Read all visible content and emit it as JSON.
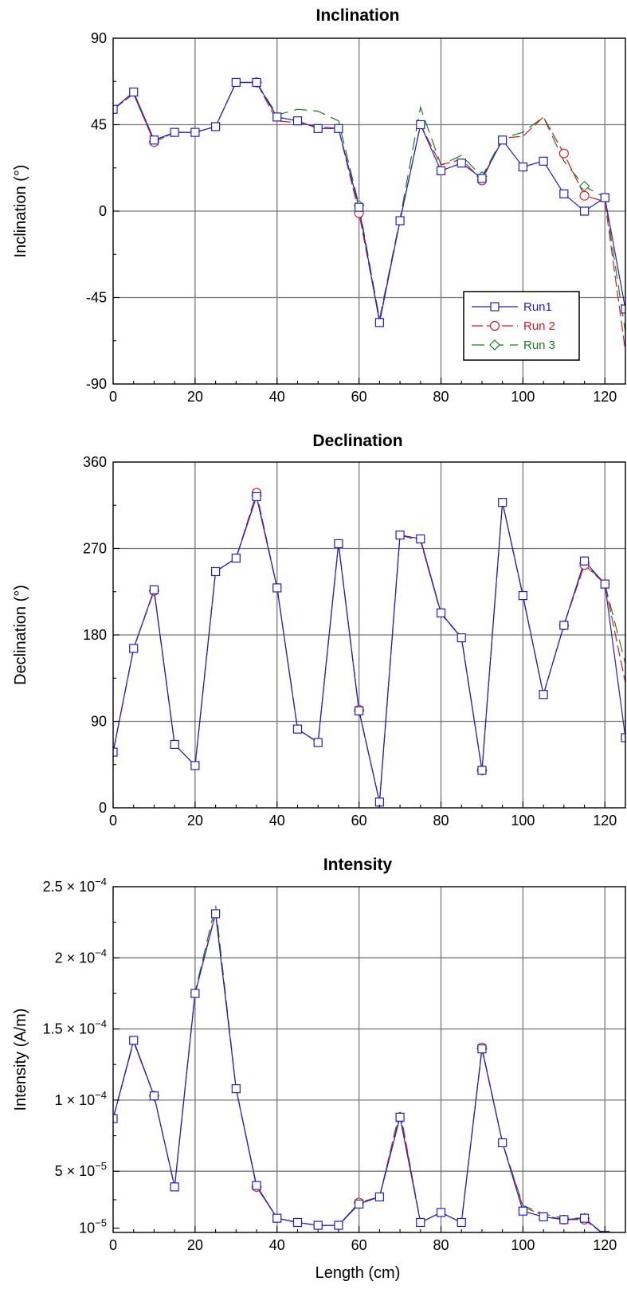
{
  "colors": {
    "run1": "#1f1fcc",
    "run2": "#cc1f1f",
    "run3": "#1f7a1f",
    "grid": "#777777"
  },
  "legend": [
    "Run1",
    "Run 2",
    "Run 3"
  ],
  "chart_data": [
    {
      "type": "line",
      "title": "Inclination",
      "xlabel": "",
      "ylabel": "Inclination (°)",
      "xlim": [
        0,
        125
      ],
      "ylim": [
        -90,
        90
      ],
      "xticks": [
        0,
        20,
        40,
        60,
        80,
        100,
        120
      ],
      "yticks": [
        -90,
        -45,
        0,
        45,
        90
      ],
      "ytick_labels": [
        "-90",
        "-45",
        "0",
        "45",
        "90"
      ],
      "grid": true,
      "legend_position": "bottom-right",
      "x": [
        0,
        5,
        10,
        15,
        20,
        25,
        30,
        35,
        40,
        45,
        50,
        55,
        60,
        65,
        70,
        75,
        80,
        85,
        90,
        95,
        100,
        105,
        110,
        115,
        120,
        125
      ],
      "series": [
        {
          "name": "Run1",
          "marker": "square",
          "style": "solid",
          "values": [
            53,
            62,
            37,
            41,
            41,
            44,
            67,
            67,
            49,
            47,
            43,
            43,
            2,
            -58,
            -5,
            45,
            21,
            25,
            17,
            37,
            23,
            26,
            9,
            0,
            7,
            -51
          ]
        },
        {
          "name": "Run 2",
          "marker": "circle",
          "style": "dashed",
          "values": [
            53,
            61,
            36,
            41,
            41,
            44,
            67,
            67,
            47,
            46,
            44,
            43,
            -1,
            -57,
            -5,
            45,
            24,
            27,
            16,
            38,
            39,
            49,
            30,
            8,
            5,
            -73
          ]
        },
        {
          "name": "Run 3",
          "marker": "diamond",
          "style": "longdash",
          "values": [
            53,
            61,
            36,
            41,
            41,
            44,
            67,
            67,
            50,
            53,
            52,
            47,
            3,
            -56,
            -4,
            54,
            24,
            29,
            18,
            38,
            41,
            49,
            26,
            13,
            7,
            -63
          ]
        }
      ]
    },
    {
      "type": "line",
      "title": "Declination",
      "xlabel": "",
      "ylabel": "Declination (°)",
      "xlim": [
        0,
        125
      ],
      "ylim": [
        0,
        360
      ],
      "xticks": [
        0,
        20,
        40,
        60,
        80,
        100,
        120
      ],
      "yticks": [
        0,
        90,
        180,
        270,
        360
      ],
      "ytick_labels": [
        "0",
        "90",
        "180",
        "270",
        "360"
      ],
      "grid": true,
      "x": [
        0,
        5,
        10,
        15,
        20,
        25,
        30,
        35,
        40,
        45,
        50,
        55,
        60,
        65,
        70,
        75,
        80,
        85,
        90,
        95,
        100,
        105,
        110,
        115,
        120,
        125
      ],
      "series": [
        {
          "name": "Run1",
          "marker": "square",
          "style": "solid",
          "values": [
            58,
            166,
            227,
            66,
            44,
            246,
            260,
            324,
            229,
            82,
            68,
            275,
            101,
            6,
            284,
            280,
            203,
            177,
            39,
            318,
            221,
            118,
            190,
            257,
            233,
            73
          ]
        },
        {
          "name": "Run 2",
          "marker": "circle",
          "style": "dashed",
          "values": [
            58,
            166,
            226,
            66,
            44,
            246,
            260,
            328,
            229,
            82,
            68,
            275,
            102,
            6,
            284,
            278,
            202,
            178,
            39,
            318,
            220,
            118,
            190,
            253,
            233,
            130
          ]
        },
        {
          "name": "Run 3",
          "marker": "diamond",
          "style": "longdash",
          "values": [
            58,
            166,
            226,
            66,
            44,
            246,
            260,
            325,
            229,
            82,
            68,
            275,
            101,
            6,
            284,
            279,
            202,
            177,
            39,
            318,
            220,
            118,
            190,
            255,
            233,
            150
          ]
        }
      ]
    },
    {
      "type": "line",
      "title": "Intensity",
      "xlabel": "Length (cm)",
      "ylabel": "Intensity (A/m)",
      "xlim": [
        0,
        125
      ],
      "ylim": [
        7e-06,
        0.00025
      ],
      "xticks": [
        0,
        20,
        40,
        60,
        80,
        100,
        120
      ],
      "yticks": [
        1e-05,
        5e-05,
        0.0001,
        0.00015,
        0.0002,
        0.00025
      ],
      "ytick_labels": [
        {
          "mantissa": "",
          "exp": "−5"
        },
        {
          "mantissa": "5 × ",
          "exp": "−5"
        },
        {
          "mantissa": "1 × ",
          "exp": "−4"
        },
        {
          "mantissa": "1.5 × ",
          "exp": "−4"
        },
        {
          "mantissa": "2 × ",
          "exp": "−4"
        },
        {
          "mantissa": "2.5 × ",
          "exp": "−4"
        }
      ],
      "ytick_base": "10",
      "grid": true,
      "x": [
        0,
        5,
        10,
        15,
        20,
        25,
        30,
        35,
        40,
        45,
        50,
        55,
        60,
        65,
        70,
        75,
        80,
        85,
        90,
        95,
        100,
        105,
        110,
        115,
        120,
        125
      ],
      "series": [
        {
          "name": "Run1",
          "marker": "square",
          "style": "solid",
          "values": [
            8.7e-05,
            0.000142,
            0.000103,
            3.9e-05,
            0.000175,
            0.000231,
            0.000108,
            4e-05,
            1.7e-05,
            1.4e-05,
            1.2e-05,
            1.2e-05,
            2.7e-05,
            3.2e-05,
            8.8e-05,
            1.4e-05,
            2.1e-05,
            1.4e-05,
            0.000136,
            7e-05,
            2.2e-05,
            1.8e-05,
            1.6e-05,
            1.7e-05,
            5e-06,
            3e-06
          ]
        },
        {
          "name": "Run 2",
          "marker": "circle",
          "style": "dashed",
          "values": [
            8.7e-05,
            0.000141,
            0.000103,
            3.9e-05,
            0.000175,
            0.000232,
            0.000108,
            3.9e-05,
            1.7e-05,
            1.4e-05,
            1.2e-05,
            1.2e-05,
            2.8e-05,
            3.2e-05,
            9.3e-05,
            1.4e-05,
            2.1e-05,
            1.4e-05,
            0.000137,
            7e-05,
            2.5e-05,
            1.9e-05,
            1.6e-05,
            1.6e-05,
            5e-06,
            4e-06
          ]
        },
        {
          "name": "Run 3",
          "marker": "diamond",
          "style": "longdash",
          "values": [
            8.7e-05,
            0.000141,
            0.000103,
            3.9e-05,
            0.000176,
            0.000237,
            0.000108,
            3.9e-05,
            1.7e-05,
            1.4e-05,
            1.2e-05,
            1.2e-05,
            2.8e-05,
            3.2e-05,
            9.1e-05,
            1.4e-05,
            2.1e-05,
            1.4e-05,
            0.000136,
            7e-05,
            2.6e-05,
            2e-05,
            1.7e-05,
            1.7e-05,
            5e-06,
            3e-06
          ]
        }
      ]
    }
  ]
}
